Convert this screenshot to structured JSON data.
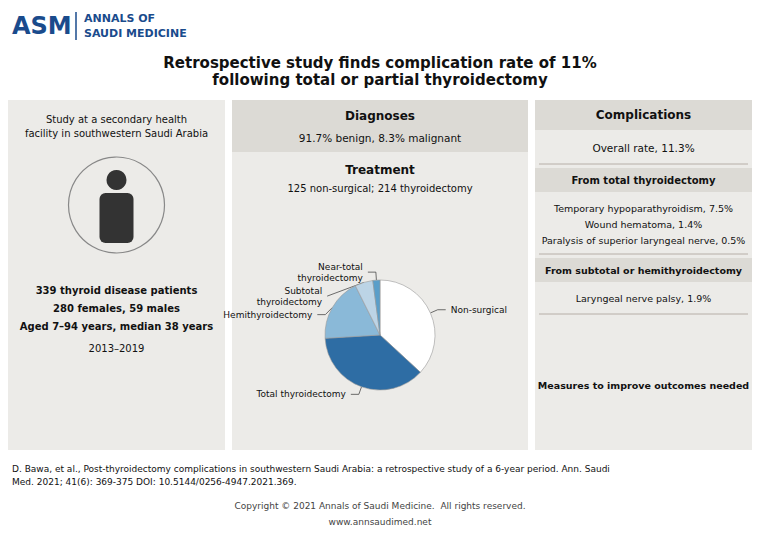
{
  "chart_data": {
    "type": "pie",
    "title": "Retrospective study finds complication rate of 11%",
    "subtitle": "following total or partial thyroidectomy",
    "categories": [
      "Non-surgical",
      "Total thyroidectomy",
      "Hemithyroidectomy",
      "Subtotal\nthyroidectomy",
      "Near-total\nthyroidectomy"
    ],
    "values": [
      36.87,
      37.17,
      18.58,
      5.29,
      2.09
    ],
    "colors": [
      "#ffffff",
      "#2e6da4",
      "#8ab9d8",
      "#bcd4e6",
      "#5a9ec9"
    ],
    "annotations": [
      [
        "ASM",
        "ANNALS OF",
        "SAUDI MEDICINE"
      ],
      [
        "Study at a secondary health\nfacility in southwestern Saudi Arabia",
        "339 thyroid disease patients",
        "280 females, 59 males",
        "Aged 7–94 years, median 38 years",
        "2013–2019"
      ],
      [
        "Diagnoses",
        "91.7% benign, 8.3% malignant",
        "Treatment",
        "125 non-surgical; 214 thyroidectomy"
      ],
      [
        "Complications",
        "Overall rate, 11.3%",
        "From total thyroidectomy",
        "Temporary hypoparathyroidism, 7.5%",
        "Wound hematoma, 1.4%",
        "Paralysis of superior laryngeal nerve, 0.5%",
        "From subtotal or hemithyroidectomy",
        "Laryngeal nerve palsy, 1.9%",
        "Measures to improve outcomes needed"
      ],
      [
        "D. Bawa, et al., Post-thyroidectomy complications in southwestern Saudi Arabia: a retrospective study of a 6-year period. Ann. Saudi\nMed. 2021; 41(6): 369-375 DOI: 10.5144/0256-4947.2021.369.",
        "Copyright © 2021 Annals of Saudi Medicine.  All rights reserved.",
        "www.annsaudimed.net"
      ]
    ]
  }
}
